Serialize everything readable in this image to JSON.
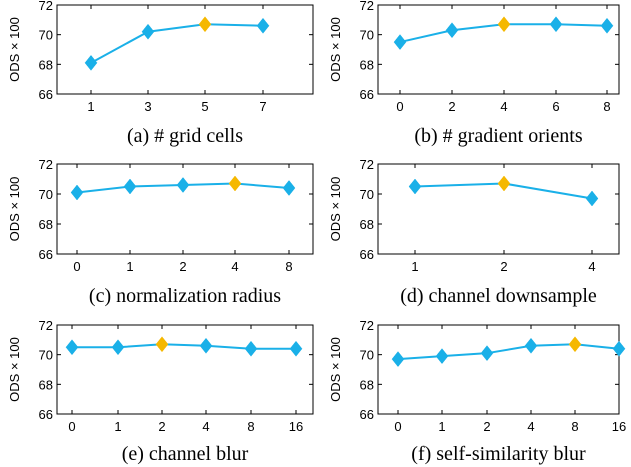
{
  "style": {
    "line_color": "#1ab0e8",
    "highlight_color": "#f5b800",
    "marker": "diamond"
  },
  "y_axis_label": "ODS × 100",
  "chart_data": [
    {
      "type": "line",
      "caption": "(a) # grid cells",
      "categories": [
        "1",
        "3",
        "5",
        "7"
      ],
      "values": [
        68.1,
        70.2,
        70.7,
        70.6
      ],
      "highlight_index": 2,
      "ylim": [
        66,
        72
      ],
      "yticks": [
        "66",
        "68",
        "70",
        "72"
      ]
    },
    {
      "type": "line",
      "caption": "(b) # gradient orients",
      "categories": [
        "0",
        "2",
        "4",
        "6",
        "8"
      ],
      "values": [
        69.5,
        70.3,
        70.7,
        70.7,
        70.6
      ],
      "highlight_index": 2,
      "ylim": [
        66,
        72
      ],
      "yticks": [
        "66",
        "68",
        "70",
        "72"
      ]
    },
    {
      "type": "line",
      "caption": "(c) normalization radius",
      "categories": [
        "0",
        "1",
        "2",
        "4",
        "8"
      ],
      "values": [
        70.1,
        70.5,
        70.6,
        70.7,
        70.4
      ],
      "highlight_index": 3,
      "ylim": [
        66,
        72
      ],
      "yticks": [
        "66",
        "68",
        "70",
        "72"
      ]
    },
    {
      "type": "line",
      "caption": "(d) channel downsample",
      "categories": [
        "1",
        "2",
        "4"
      ],
      "values": [
        70.5,
        70.7,
        69.7
      ],
      "highlight_index": 1,
      "ylim": [
        66,
        72
      ],
      "yticks": [
        "66",
        "68",
        "70",
        "72"
      ]
    },
    {
      "type": "line",
      "caption": "(e) channel blur",
      "categories": [
        "0",
        "1",
        "2",
        "4",
        "8",
        "16"
      ],
      "values": [
        70.5,
        70.5,
        70.7,
        70.6,
        70.4,
        70.4
      ],
      "highlight_index": 2,
      "ylim": [
        66,
        72
      ],
      "yticks": [
        "66",
        "68",
        "70",
        "72"
      ]
    },
    {
      "type": "line",
      "caption": "(f) self-similarity blur",
      "categories": [
        "0",
        "1",
        "2",
        "4",
        "8",
        "16"
      ],
      "values": [
        69.7,
        69.9,
        70.1,
        70.6,
        70.7,
        70.4
      ],
      "highlight_index": 4,
      "ylim": [
        66,
        72
      ],
      "yticks": [
        "66",
        "68",
        "70",
        "72"
      ]
    }
  ]
}
